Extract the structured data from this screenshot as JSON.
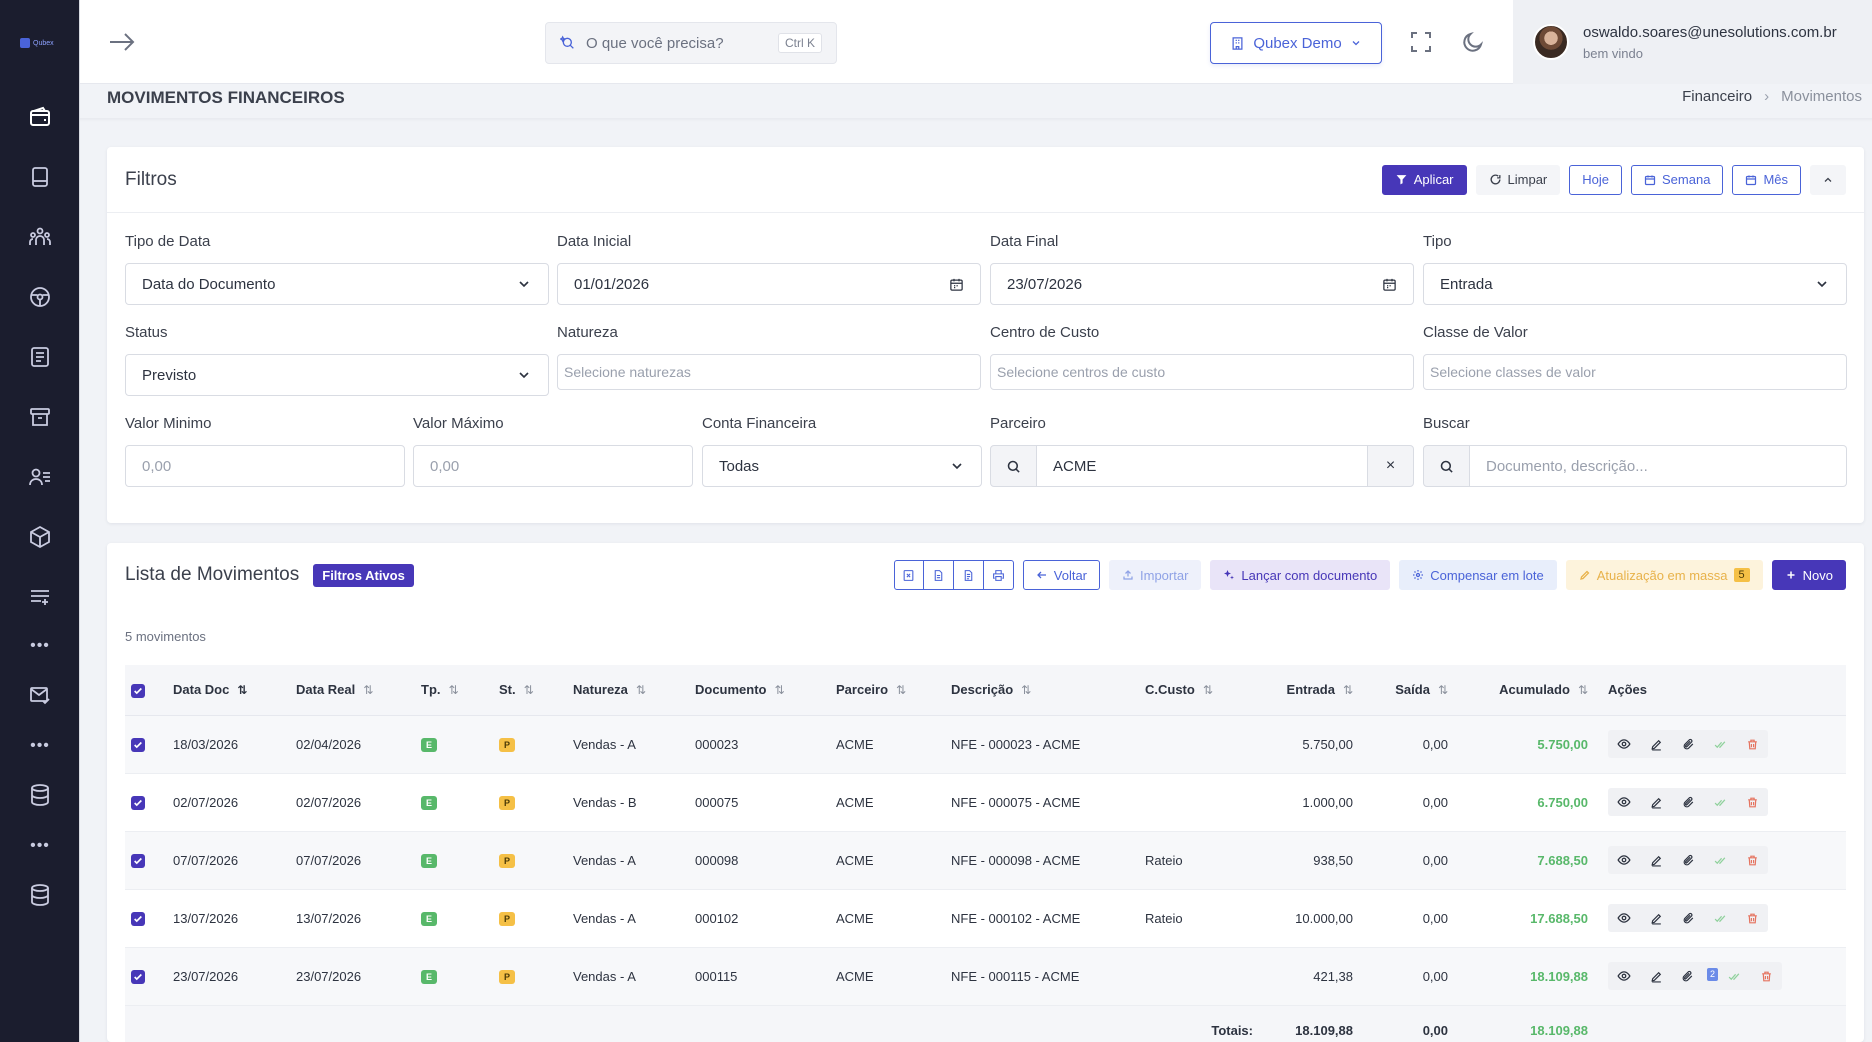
{
  "app": {
    "logo_text": "Qubex"
  },
  "topbar": {
    "search_placeholder": "O que você precisa?",
    "search_shortcut": "Ctrl K",
    "company": "Qubex Demo",
    "user_email": "oswaldo.soares@unesolutions.com.br",
    "user_greeting": "bem vindo"
  },
  "sidebar": {
    "items": [
      {
        "icon": "wallet-icon"
      },
      {
        "icon": "book-icon"
      },
      {
        "icon": "users-icon"
      },
      {
        "icon": "steering-wheel-icon"
      },
      {
        "icon": "document-icon"
      },
      {
        "icon": "archive-icon"
      },
      {
        "icon": "user-list-icon"
      },
      {
        "icon": "package-icon"
      },
      {
        "icon": "list-add-icon"
      },
      {
        "icon": "mail-check-icon"
      },
      {
        "icon": "database-icon"
      },
      {
        "icon": "database-icon"
      }
    ],
    "dots": "•••"
  },
  "page": {
    "title": "MOVIMENTOS FINANCEIROS",
    "breadcrumb": [
      "Financeiro",
      "Movimentos"
    ],
    "breadcrumb_sep": "›"
  },
  "filters": {
    "title": "Filtros",
    "buttons": {
      "apply": "Aplicar",
      "clear": "Limpar",
      "today": "Hoje",
      "week": "Semana",
      "month": "Mês"
    },
    "tipo_data": {
      "label": "Tipo de Data",
      "value": "Data do Documento"
    },
    "data_inicial": {
      "label": "Data Inicial",
      "value": "01/01/2026"
    },
    "data_final": {
      "label": "Data Final",
      "value": "23/07/2026"
    },
    "tipo": {
      "label": "Tipo",
      "value": "Entrada"
    },
    "status": {
      "label": "Status",
      "value": "Previsto"
    },
    "natureza": {
      "label": "Natureza",
      "placeholder": "Selecione naturezas"
    },
    "centro_custo": {
      "label": "Centro de Custo",
      "placeholder": "Selecione centros de custo"
    },
    "classe_valor": {
      "label": "Classe de Valor",
      "placeholder": "Selecione classes de valor"
    },
    "valor_minimo": {
      "label": "Valor Minimo",
      "placeholder": "0,00"
    },
    "valor_maximo": {
      "label": "Valor Máximo",
      "placeholder": "0,00"
    },
    "conta_financeira": {
      "label": "Conta Financeira",
      "value": "Todas"
    },
    "parceiro": {
      "label": "Parceiro",
      "value": "ACME",
      "clear": "×"
    },
    "buscar": {
      "label": "Buscar",
      "placeholder": "Documento, descrição..."
    }
  },
  "list": {
    "title": "Lista de Movimentos",
    "badge": "Filtros Ativos",
    "count": "5 movimentos",
    "buttons": {
      "back": "Voltar",
      "import": "Importar",
      "launch_doc": "Lançar com documento",
      "compensate": "Compensar em lote",
      "bulk_update": "Atualização em massa",
      "bulk_count": "5",
      "new": "Novo"
    },
    "columns": [
      "Data Doc",
      "Data Real",
      "Tp.",
      "St.",
      "Natureza",
      "Documento",
      "Parceiro",
      "Descrição",
      "C.Custo",
      "Entrada",
      "Saída",
      "Acumulado",
      "Ações"
    ],
    "sort_icon": "⇅",
    "rows": [
      {
        "data_doc": "18/03/2026",
        "data_real": "02/04/2026",
        "tp": "E",
        "st": "P",
        "natureza": "Vendas - A",
        "documento": "000023",
        "parceiro": "ACME",
        "descricao": "NFE - 000023 - ACME",
        "ccusto": "",
        "entrada": "5.750,00",
        "saida": "0,00",
        "acumulado": "5.750,00",
        "attach_count": ""
      },
      {
        "data_doc": "02/07/2026",
        "data_real": "02/07/2026",
        "tp": "E",
        "st": "P",
        "natureza": "Vendas - B",
        "documento": "000075",
        "parceiro": "ACME",
        "descricao": "NFE - 000075 - ACME",
        "ccusto": "",
        "entrada": "1.000,00",
        "saida": "0,00",
        "acumulado": "6.750,00",
        "attach_count": ""
      },
      {
        "data_doc": "07/07/2026",
        "data_real": "07/07/2026",
        "tp": "E",
        "st": "P",
        "natureza": "Vendas - A",
        "documento": "000098",
        "parceiro": "ACME",
        "descricao": "NFE - 000098 - ACME",
        "ccusto": "Rateio",
        "entrada": "938,50",
        "saida": "0,00",
        "acumulado": "7.688,50",
        "attach_count": ""
      },
      {
        "data_doc": "13/07/2026",
        "data_real": "13/07/2026",
        "tp": "E",
        "st": "P",
        "natureza": "Vendas - A",
        "documento": "000102",
        "parceiro": "ACME",
        "descricao": "NFE - 000102 - ACME",
        "ccusto": "Rateio",
        "entrada": "10.000,00",
        "saida": "0,00",
        "acumulado": "17.688,50",
        "attach_count": ""
      },
      {
        "data_doc": "23/07/2026",
        "data_real": "23/07/2026",
        "tp": "E",
        "st": "P",
        "natureza": "Vendas - A",
        "documento": "000115",
        "parceiro": "ACME",
        "descricao": "NFE - 000115 - ACME",
        "ccusto": "",
        "entrada": "421,38",
        "saida": "0,00",
        "acumulado": "18.109,88",
        "attach_count": "2"
      }
    ],
    "totals": {
      "label": "Totais:",
      "entrada": "18.109,88",
      "saida": "0,00",
      "acumulado": "18.109,88"
    }
  },
  "colors": {
    "primary": "#4737b8",
    "accent": "#4a63d8",
    "success": "#58b86a",
    "warning": "#f5c046",
    "danger": "#e5735f",
    "sidebar": "#1b1d2e"
  }
}
